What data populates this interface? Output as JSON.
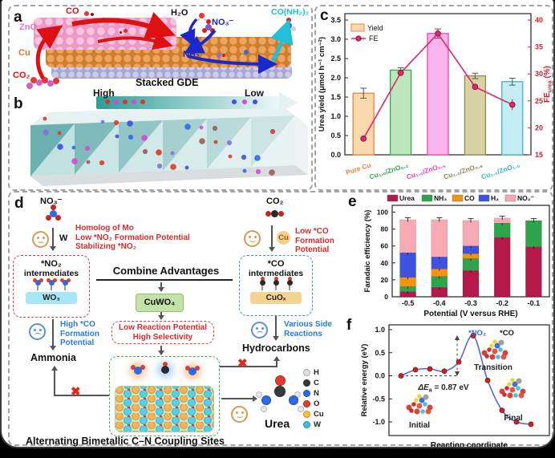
{
  "panel_a": {
    "label": "a",
    "zno": "ZnO",
    "cu": "Cu",
    "co": "CO",
    "co2": "CO₂",
    "h2o": "H₂O",
    "no3": "NO₃⁻",
    "nh2": "NH₂",
    "urea_formula": "CO(NH₂)₂",
    "caption": "Stacked GDE"
  },
  "panel_b": {
    "label": "b",
    "high": "High",
    "low": "Low"
  },
  "panel_c": {
    "label": "c"
  },
  "panel_d": {
    "label": "d",
    "no3": "NO₃⁻",
    "w": "W",
    "homolog_lines": [
      "Homolog of Mo",
      "Low *NO₂ Formation Potential",
      "Stabilizing *NO₂"
    ],
    "no2_int_line1": "*NO₂",
    "no2_int_line2": "intermediates",
    "wo3": "WO₃",
    "high_co_lines": [
      "High *CO",
      "Formation",
      "Potential"
    ],
    "ammonia": "Ammonia",
    "combine": "Combine Advantages",
    "cuwo4": "CuWO₄",
    "mid_lines": [
      "Low Reaction Potential",
      "High Selectivity"
    ],
    "co2": "CO₂",
    "cu": "Cu",
    "low_co_lines": [
      "Low *CO",
      "Formation",
      "Potential"
    ],
    "co_int_line1": "*CO",
    "co_int_line2": "intermediates",
    "cuox": "CuOₓ",
    "side_lines": [
      "Various Side",
      "Reactions"
    ],
    "hydrocarbons": "Hydrocarbons",
    "urea": "Urea",
    "caption": "Alternating Bimetallic C–N Coupling Sites",
    "atom_legend": [
      [
        "H",
        "#e0e0e0"
      ],
      [
        "C",
        "#3a3a3a"
      ],
      [
        "N",
        "#2b6be4"
      ],
      [
        "O",
        "#e23a2e"
      ],
      [
        "Cu",
        "#f2c43c"
      ],
      [
        "W",
        "#3bbfe0"
      ]
    ]
  },
  "panel_e": {
    "label": "e"
  },
  "panel_f": {
    "label": "f"
  },
  "chart_data": [
    {
      "id": "c",
      "type": "bar+line",
      "categories": [
        "Pure Cu",
        "Cu₁.₀/ZnO₀.₂",
        "Cu₁.₀/ZnO₀.₅",
        "Cu₁.₀/ZnO₀.₈",
        "Cu₁.₀/ZnO₁.₀"
      ],
      "category_colors": [
        "#e8843c",
        "#33a84c",
        "#ee3fc0",
        "#8f8a52",
        "#3cb4c8"
      ],
      "bar_fills": [
        "#fbd8ae",
        "#bce6bc",
        "#fcb4ec",
        "#d8d2a4",
        "#c4eef4"
      ],
      "yield": {
        "name": "Yield",
        "values": [
          1.6,
          2.2,
          3.15,
          2.05,
          1.9
        ],
        "errors": [
          0.13,
          0.06,
          0.12,
          0.07,
          0.09
        ]
      },
      "fe": {
        "name": "FE",
        "values": [
          18.0,
          30.2,
          37.5,
          27.6,
          24.3
        ],
        "errors": [
          0.4,
          0.5,
          0.8,
          0.5,
          1.0
        ],
        "color": "#e3246e"
      },
      "ylabel_left": "Urea yield (μmol h⁻¹ cm⁻²)",
      "fe_label": {
        "main": "FE",
        "sub": "urea",
        "unit": " (%)"
      },
      "ylim_left": [
        0,
        3.5
      ],
      "ylim_right": [
        15,
        40
      ],
      "yticks_left": [
        "0.0",
        "0.5",
        "1.0",
        "1.5",
        "2.0",
        "2.5",
        "3.0",
        "3.5"
      ],
      "yticks_right": [
        "15",
        "20",
        "25",
        "30",
        "35",
        "40"
      ]
    },
    {
      "id": "e",
      "type": "stacked-bar",
      "categories": [
        "-0.5",
        "-0.4",
        "-0.3",
        "-0.2",
        "-0.1"
      ],
      "xlabel": "Potential (V versus RHE)",
      "ylabel": "Faradaic efficiency (%)",
      "ylim": [
        0,
        100
      ],
      "yticks": [
        0,
        20,
        40,
        60,
        80,
        100
      ],
      "series": [
        {
          "name": "Urea",
          "color": "#b5184a",
          "values": [
            6,
            11,
            31,
            70,
            59
          ]
        },
        {
          "name": "NH₃",
          "color": "#2ea44c",
          "values": [
            6,
            13,
            14,
            17,
            31
          ]
        },
        {
          "name": "CO",
          "color": "#f59311",
          "values": [
            11,
            9,
            6,
            0,
            0
          ]
        },
        {
          "name": "H₂",
          "color": "#3d52e0",
          "values": [
            29,
            14,
            9,
            0,
            0
          ]
        },
        {
          "name": "NO₂⁻",
          "color": "#f7aab4",
          "values": [
            39,
            44,
            30,
            6,
            0
          ]
        }
      ]
    },
    {
      "id": "f",
      "type": "line",
      "xlabel": "Reaction coordinate",
      "ylabel": "Relative energy (eV)",
      "x": [
        0,
        1,
        2,
        3,
        4,
        5,
        6,
        7,
        8,
        9
      ],
      "y": [
        0.0,
        0.13,
        0.15,
        0.1,
        0.3,
        0.87,
        -0.1,
        -0.75,
        -1.0,
        -1.05
      ],
      "yticks": [
        -1.0,
        -0.5,
        0.0,
        0.5,
        1.0
      ],
      "barrier": {
        "pre": "ΔE",
        "sub": "a",
        "post": " = 0.87 eV"
      },
      "point_labels": {
        "no2": "*NO₂",
        "co": "*CO",
        "transition": "Transition",
        "initial": "Initial",
        "final": "Final"
      },
      "line_color": "#5566dd",
      "point_color": "#cc2222"
    }
  ]
}
